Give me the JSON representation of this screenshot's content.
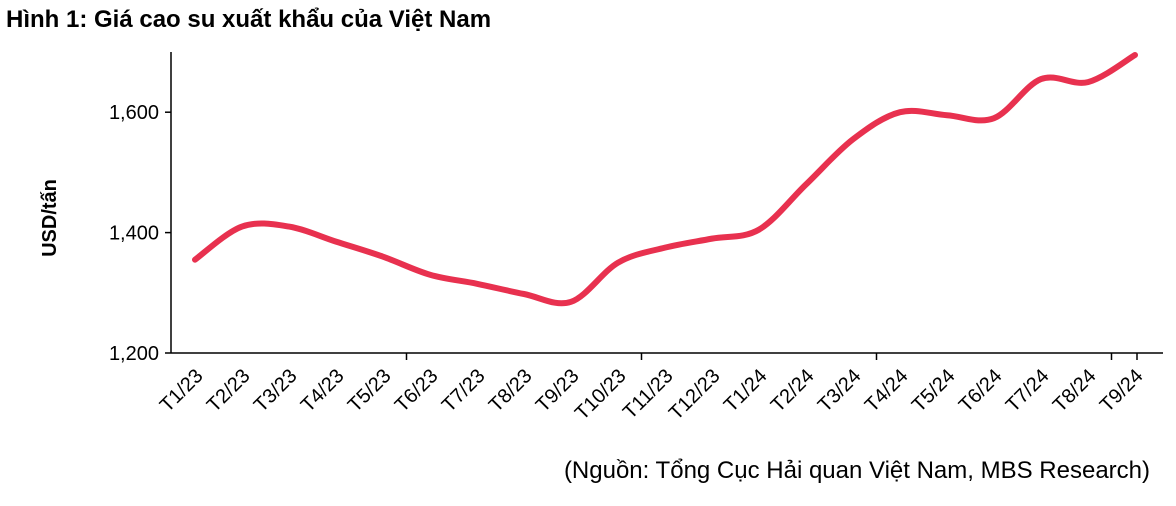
{
  "title": "Hình 1: Giá cao su xuất khẩu của Việt Nam",
  "source": "(Nguồn: Tổng Cục Hải quan Việt Nam, MBS Research)",
  "chart_data": {
    "type": "line",
    "title": "Hình 1: Giá cao su xuất khẩu của Việt Nam",
    "xlabel": "",
    "ylabel": "USD/tấn",
    "ylim": [
      1200,
      1700
    ],
    "yticks": [
      1200,
      1400,
      1600
    ],
    "ytick_labels": [
      "1,200",
      "1,400",
      "1,600"
    ],
    "x_major_tick_every": 5,
    "grid": false,
    "line_color": "#e8314f",
    "categories": [
      "T1/23",
      "T2/23",
      "T3/23",
      "T4/23",
      "T5/23",
      "T6/23",
      "T7/23",
      "T8/23",
      "T9/23",
      "T10/23",
      "T11/23",
      "T12/23",
      "T1/24",
      "T2/24",
      "T3/24",
      "T4/24",
      "T5/24",
      "T6/24",
      "T7/24",
      "T8/24",
      "T9/24"
    ],
    "series": [
      {
        "values": [
          1355,
          1410,
          1410,
          1385,
          1360,
          1330,
          1315,
          1298,
          1285,
          1350,
          1375,
          1390,
          1405,
          1480,
          1555,
          1600,
          1595,
          1590,
          1655,
          1650,
          1695
        ]
      }
    ]
  }
}
